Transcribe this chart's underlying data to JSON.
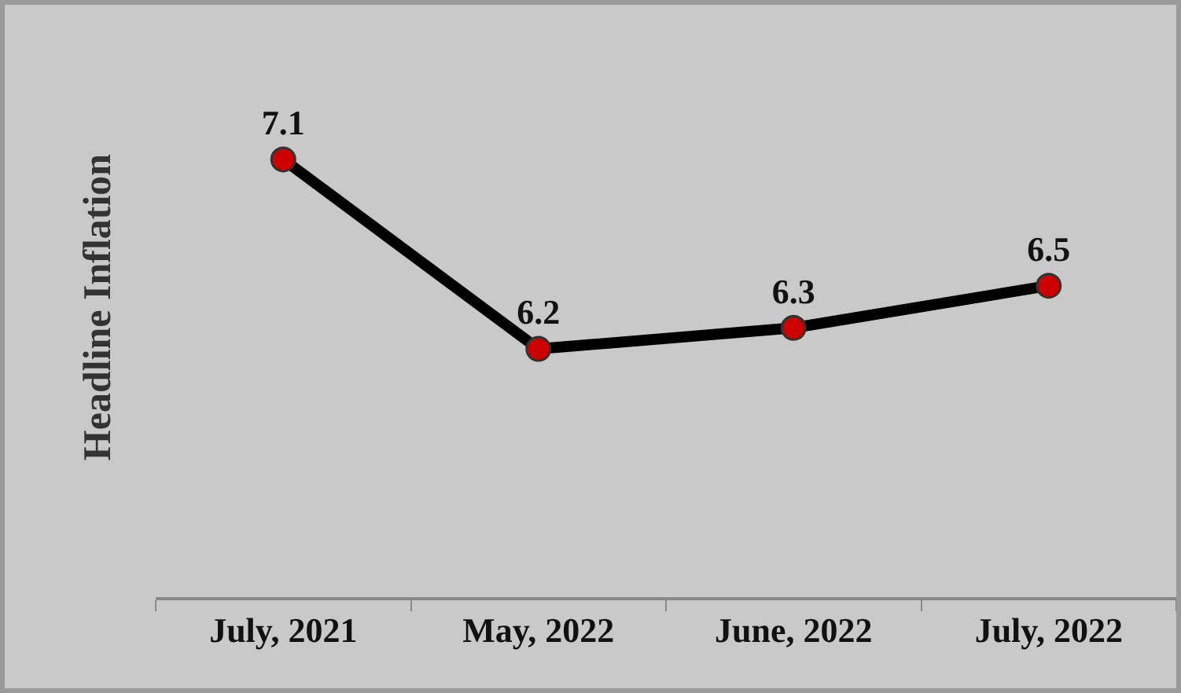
{
  "chart_data": {
    "type": "line",
    "ylabel": "Headline Inflation",
    "categories": [
      "July, 2021",
      "May, 2022",
      "June, 2022",
      "July, 2022"
    ],
    "series": [
      {
        "color": "#000000",
        "values": [
          7.1,
          6.2,
          6.3,
          6.5
        ]
      }
    ],
    "data_labels": true,
    "marker": "circle",
    "line_style": "solid",
    "grid": false,
    "legend": false,
    "tick_labels": "x"
  }
}
